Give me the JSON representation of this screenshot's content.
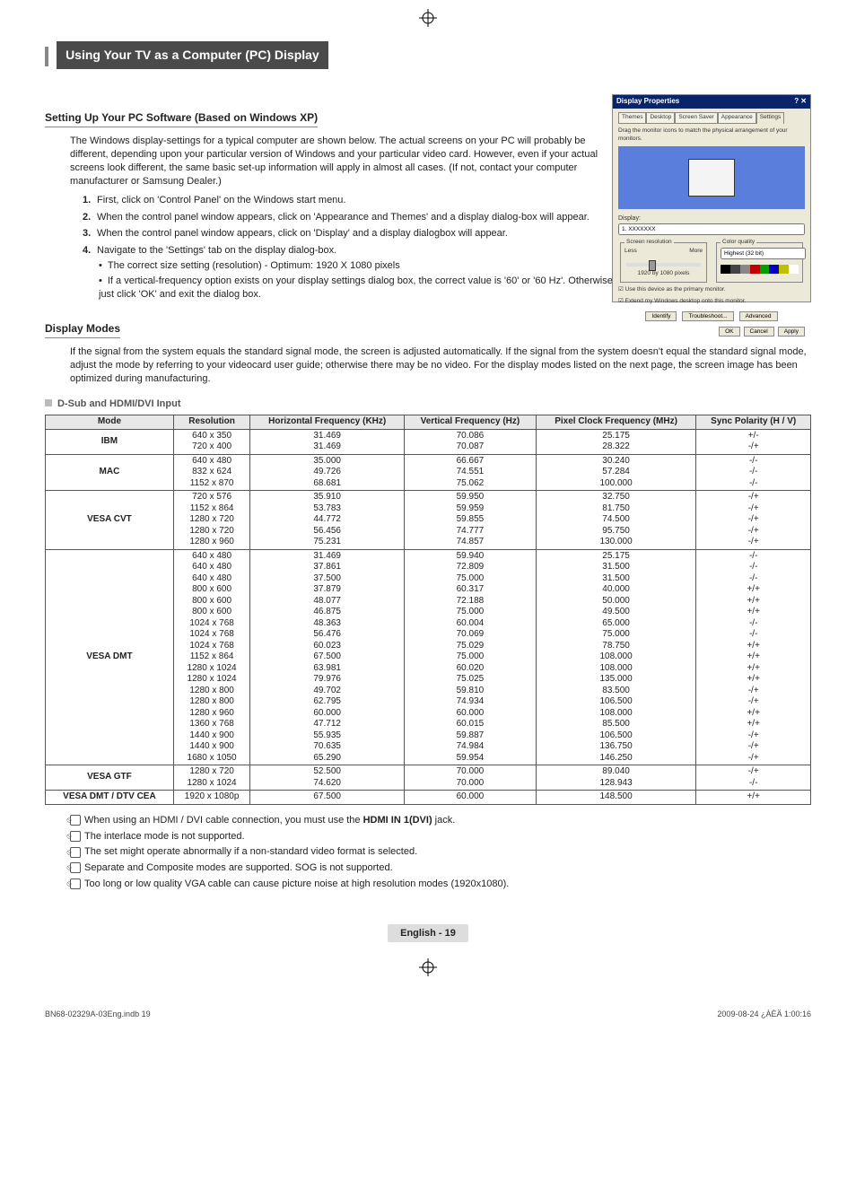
{
  "section_title": "Using Your TV as a Computer (PC) Display",
  "sub1": {
    "heading": "Setting Up Your PC Software (Based on Windows XP)",
    "para": "The Windows display-settings for a typical computer are shown below. The actual screens on your PC will probably be different, depending upon your particular version of Windows and your particular video card. However, even if your actual screens look different, the same basic set-up information will apply in almost all cases. (If not, contact your computer manufacturer or Samsung Dealer.)",
    "steps": [
      "First, click on 'Control Panel' on the Windows start menu.",
      "When the control panel window appears, click on 'Appearance and Themes' and a display dialog-box will appear.",
      "When the control panel window appears, click on 'Display' and a display dialogbox will appear.",
      "Navigate to the 'Settings' tab on the display dialog-box."
    ],
    "bullets": [
      "The correct size setting (resolution) - Optimum: 1920 X 1080 pixels",
      "If a vertical-frequency option exists on your display settings dialog box, the correct value is '60' or '60 Hz'. Otherwise, just click 'OK' and exit the dialog box."
    ]
  },
  "dialog": {
    "title": "Display Properties",
    "tabs": [
      "Themes",
      "Desktop",
      "Screen Saver",
      "Appearance",
      "Settings"
    ],
    "active_tab": 4,
    "drag_text": "Drag the monitor icons to match the physical arrangement of your monitors.",
    "display_label": "Display:",
    "display_value": "1. XXXXXXX",
    "res_legend": "Screen resolution",
    "res_less": "Less",
    "res_more": "More",
    "res_value": "1920 by 1080 pixels",
    "cq_legend": "Color quality",
    "cq_value": "Highest (32 bit)",
    "chk1": "Use this device as the primary monitor.",
    "chk2": "Extend my Windows desktop onto this monitor.",
    "mid_buttons": [
      "Identify",
      "Troubleshoot...",
      "Advanced"
    ],
    "bottom_buttons": [
      "OK",
      "Cancel",
      "Apply"
    ],
    "colorbar": [
      "#000000",
      "#444444",
      "#888888",
      "#c00000",
      "#00a000",
      "#0000c0",
      "#c0c000",
      "#ffffff"
    ]
  },
  "sub2": {
    "heading": "Display Modes",
    "para": "If the signal from the system equals the standard signal mode, the screen is adjusted automatically. If the signal from the system doesn't equal the standard signal mode, adjust the mode by referring to your videocard user guide; otherwise there may be no video. For the display modes listed on the next page, the screen image has been optimized during manufacturing."
  },
  "table_label": "D-Sub and HDMI/DVI Input",
  "table": {
    "headers": [
      "Mode",
      "Resolution",
      "Horizontal Frequency (KHz)",
      "Vertical Frequency (Hz)",
      "Pixel Clock Frequency (MHz)",
      "Sync Polarity (H / V)"
    ],
    "rows": [
      {
        "mode": "IBM",
        "res": [
          "640 x 350",
          "720 x 400"
        ],
        "hf": [
          "31.469",
          "31.469"
        ],
        "vf": [
          "70.086",
          "70.087"
        ],
        "pc": [
          "25.175",
          "28.322"
        ],
        "sp": [
          "+/-",
          "-/+"
        ]
      },
      {
        "mode": "MAC",
        "res": [
          "640 x 480",
          "832 x 624",
          "1152 x 870"
        ],
        "hf": [
          "35.000",
          "49.726",
          "68.681"
        ],
        "vf": [
          "66.667",
          "74.551",
          "75.062"
        ],
        "pc": [
          "30.240",
          "57.284",
          "100.000"
        ],
        "sp": [
          "-/-",
          "-/-",
          "-/-"
        ]
      },
      {
        "mode": "VESA CVT",
        "res": [
          "720 x 576",
          "1152 x 864",
          "1280 x 720",
          "1280 x 720",
          "1280 x 960"
        ],
        "hf": [
          "35.910",
          "53.783",
          "44.772",
          "56.456",
          "75.231"
        ],
        "vf": [
          "59.950",
          "59.959",
          "59.855",
          "74.777",
          "74.857"
        ],
        "pc": [
          "32.750",
          "81.750",
          "74.500",
          "95.750",
          "130.000"
        ],
        "sp": [
          "-/+",
          "-/+",
          "-/+",
          "-/+",
          "-/+"
        ]
      },
      {
        "mode": "VESA DMT",
        "res": [
          "640 x 480",
          "640 x 480",
          "640 x 480",
          "800 x 600",
          "800 x 600",
          "800 x 600",
          "1024 x 768",
          "1024 x 768",
          "1024 x 768",
          "1152 x 864",
          "1280 x 1024",
          "1280 x 1024",
          "1280 x 800",
          "1280 x 800",
          "1280 x 960",
          "1360 x 768",
          "1440 x 900",
          "1440 x 900",
          "1680 x 1050"
        ],
        "hf": [
          "31.469",
          "37.861",
          "37.500",
          "37.879",
          "48.077",
          "46.875",
          "48.363",
          "56.476",
          "60.023",
          "67.500",
          "63.981",
          "79.976",
          "49.702",
          "62.795",
          "60.000",
          "47.712",
          "55.935",
          "70.635",
          "65.290"
        ],
        "vf": [
          "59.940",
          "72.809",
          "75.000",
          "60.317",
          "72.188",
          "75.000",
          "60.004",
          "70.069",
          "75.029",
          "75.000",
          "60.020",
          "75.025",
          "59.810",
          "74.934",
          "60.000",
          "60.015",
          "59.887",
          "74.984",
          "59.954"
        ],
        "pc": [
          "25.175",
          "31.500",
          "31.500",
          "40.000",
          "50.000",
          "49.500",
          "65.000",
          "75.000",
          "78.750",
          "108.000",
          "108.000",
          "135.000",
          "83.500",
          "106.500",
          "108.000",
          "85.500",
          "106.500",
          "136.750",
          "146.250"
        ],
        "sp": [
          "-/-",
          "-/-",
          "-/-",
          "+/+",
          "+/+",
          "+/+",
          "-/-",
          "-/-",
          "+/+",
          "+/+",
          "+/+",
          "+/+",
          "-/+",
          "-/+",
          "+/+",
          "+/+",
          "-/+",
          "-/+",
          "-/+"
        ]
      },
      {
        "mode": "VESA GTF",
        "res": [
          "1280 x 720",
          "1280 x 1024"
        ],
        "hf": [
          "52.500",
          "74.620"
        ],
        "vf": [
          "70.000",
          "70.000"
        ],
        "pc": [
          "89.040",
          "128.943"
        ],
        "sp": [
          "-/+",
          "-/-"
        ]
      },
      {
        "mode": "VESA DMT / DTV CEA",
        "res": [
          "1920 x 1080p"
        ],
        "hf": [
          "67.500"
        ],
        "vf": [
          "60.000"
        ],
        "pc": [
          "148.500"
        ],
        "sp": [
          "+/+"
        ]
      }
    ]
  },
  "notes": [
    {
      "text_pre": "When using an HDMI / DVI cable connection, you must use the ",
      "bold": "HDMI IN 1(DVI)",
      "text_post": " jack."
    },
    {
      "text_pre": "The interlace mode is not supported.",
      "bold": "",
      "text_post": ""
    },
    {
      "text_pre": "The set might operate abnormally if a non-standard video format is selected.",
      "bold": "",
      "text_post": ""
    },
    {
      "text_pre": "Separate and Composite modes are supported. SOG is not supported.",
      "bold": "",
      "text_post": ""
    },
    {
      "text_pre": "Too long or low quality VGA cable can cause picture noise at high resolution modes (1920x1080).",
      "bold": "",
      "text_post": ""
    }
  ],
  "footer": {
    "page_label": "English - 19",
    "doc_id": "BN68-02329A-03Eng.indb   19",
    "timestamp": "2009-08-24   ¿ÀÈÄ 1:00:16"
  }
}
